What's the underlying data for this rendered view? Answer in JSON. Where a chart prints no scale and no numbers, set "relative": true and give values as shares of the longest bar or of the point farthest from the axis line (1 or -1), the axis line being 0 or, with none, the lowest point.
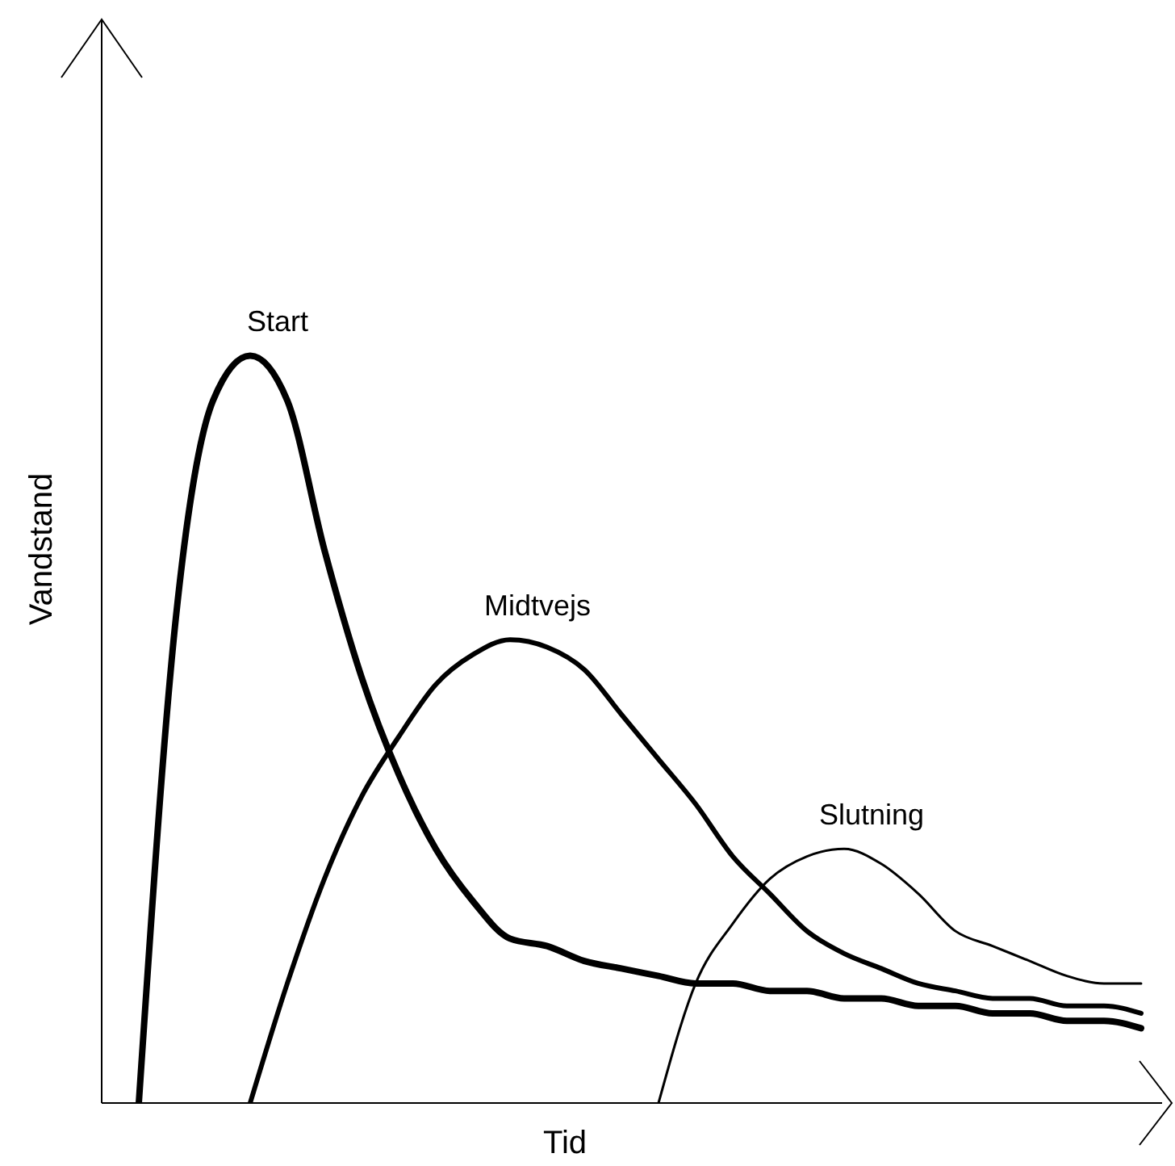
{
  "chart_data": {
    "type": "line",
    "relative": true,
    "xlabel": "Tid",
    "ylabel": "Vandstand",
    "categories": [
      null,
      null,
      null,
      null,
      null,
      null,
      null,
      null,
      null,
      null,
      null,
      null,
      null,
      null,
      null,
      null,
      null,
      null,
      null,
      null,
      null,
      null,
      null,
      null,
      null,
      null,
      null,
      null,
      null
    ],
    "series": [
      {
        "name": "Start",
        "color": "#000000",
        "values": [
          null,
          0,
          0.65,
          0.94,
          1,
          0.94,
          0.74,
          0.57,
          0.44,
          0.34,
          0.27,
          0.22,
          0.21,
          0.19,
          0.18,
          0.17,
          0.16,
          0.16,
          0.15,
          0.15,
          0.14,
          0.14,
          0.13,
          0.13,
          0.12,
          0.12,
          0.11,
          0.11,
          0.1
        ]
      },
      {
        "name": "Midtvejs",
        "color": "#000000",
        "values": [
          null,
          null,
          null,
          null,
          0,
          0.16,
          0.3,
          0.41,
          0.49,
          0.56,
          0.6,
          0.62,
          0.61,
          0.58,
          0.52,
          0.46,
          0.4,
          0.33,
          0.28,
          0.23,
          0.2,
          0.18,
          0.16,
          0.15,
          0.14,
          0.14,
          0.13,
          0.13,
          0.12
        ]
      },
      {
        "name": "Slutning",
        "color": "#000000",
        "values": [
          null,
          null,
          null,
          null,
          null,
          null,
          null,
          null,
          null,
          null,
          null,
          null,
          null,
          null,
          null,
          0,
          0.16,
          0.24,
          0.3,
          0.33,
          0.34,
          0.32,
          0.28,
          0.23,
          0.21,
          0.19,
          0.17,
          0.16,
          0.16
        ]
      }
    ]
  }
}
